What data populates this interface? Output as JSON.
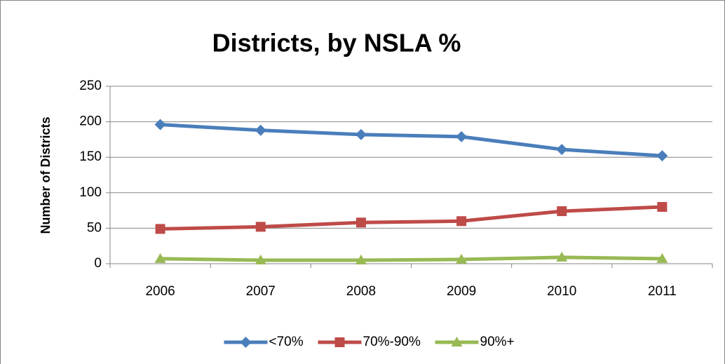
{
  "chart_data": {
    "type": "line",
    "title": "Districts, by NSLA %",
    "y_label": "Number of Districts",
    "categories": [
      "2006",
      "2007",
      "2008",
      "2009",
      "2010",
      "2011"
    ],
    "series": [
      {
        "name": "<70%",
        "color": "#4a7ebb",
        "marker": "diamond",
        "values": [
          196,
          188,
          182,
          179,
          161,
          152
        ]
      },
      {
        "name": "70%-90%",
        "color": "#be4b48",
        "marker": "square",
        "values": [
          49,
          52,
          58,
          60,
          74,
          80
        ]
      },
      {
        "name": "90%+",
        "color": "#98b954",
        "marker": "triangle",
        "values": [
          7,
          5,
          5,
          6,
          9,
          7
        ]
      }
    ],
    "ylim": [
      0,
      250
    ],
    "yticks": [
      0,
      50,
      100,
      150,
      200,
      250
    ],
    "grid": true,
    "legend": "bottom"
  }
}
